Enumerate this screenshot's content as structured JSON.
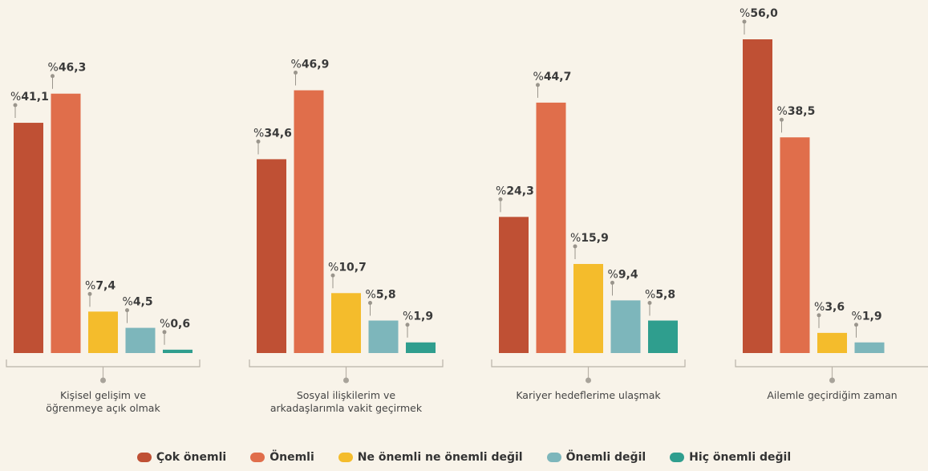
{
  "chart_data": {
    "type": "bar",
    "categories": [
      [
        "Kişisel gelişim ve",
        "öğrenmeye açık olmak"
      ],
      [
        "Sosyal ilişkilerim ve",
        "arkadaşlarımla vakit geçirmek"
      ],
      [
        "Kariyer hedeflerime ulaşmak"
      ],
      [
        "Ailemle geçirdiğim zaman"
      ]
    ],
    "series": [
      {
        "name": "Çok önemli",
        "color": "#bf5034",
        "values": [
          41.1,
          34.6,
          24.3,
          56.0
        ]
      },
      {
        "name": "Önemli",
        "color": "#e06e4b",
        "values": [
          46.3,
          46.9,
          44.7,
          38.5
        ]
      },
      {
        "name": "Ne önemli ne önemli değil",
        "color": "#f4bc2c",
        "values": [
          7.4,
          10.7,
          15.9,
          3.6
        ]
      },
      {
        "name": "Önemli değil",
        "color": "#7db6bb",
        "values": [
          4.5,
          5.8,
          9.4,
          1.9
        ]
      },
      {
        "name": "Hiç önemli değil",
        "color": "#2f9e8e",
        "values": [
          0.6,
          1.9,
          5.8,
          null
        ]
      }
    ],
    "value_prefix": "%",
    "labels": [
      [
        "41,1",
        "46,3",
        "7,4",
        "4,5",
        "0,6"
      ],
      [
        "34,6",
        "46,9",
        "10,7",
        "5,8",
        "1,9"
      ],
      [
        "24,3",
        "44,7",
        "15,9",
        "9,4",
        "5,8"
      ],
      [
        "56,0",
        "38,5",
        "3,6",
        "1,9",
        null
      ]
    ],
    "ylim": [
      0,
      56
    ],
    "legend_position": "bottom",
    "grid": false
  }
}
